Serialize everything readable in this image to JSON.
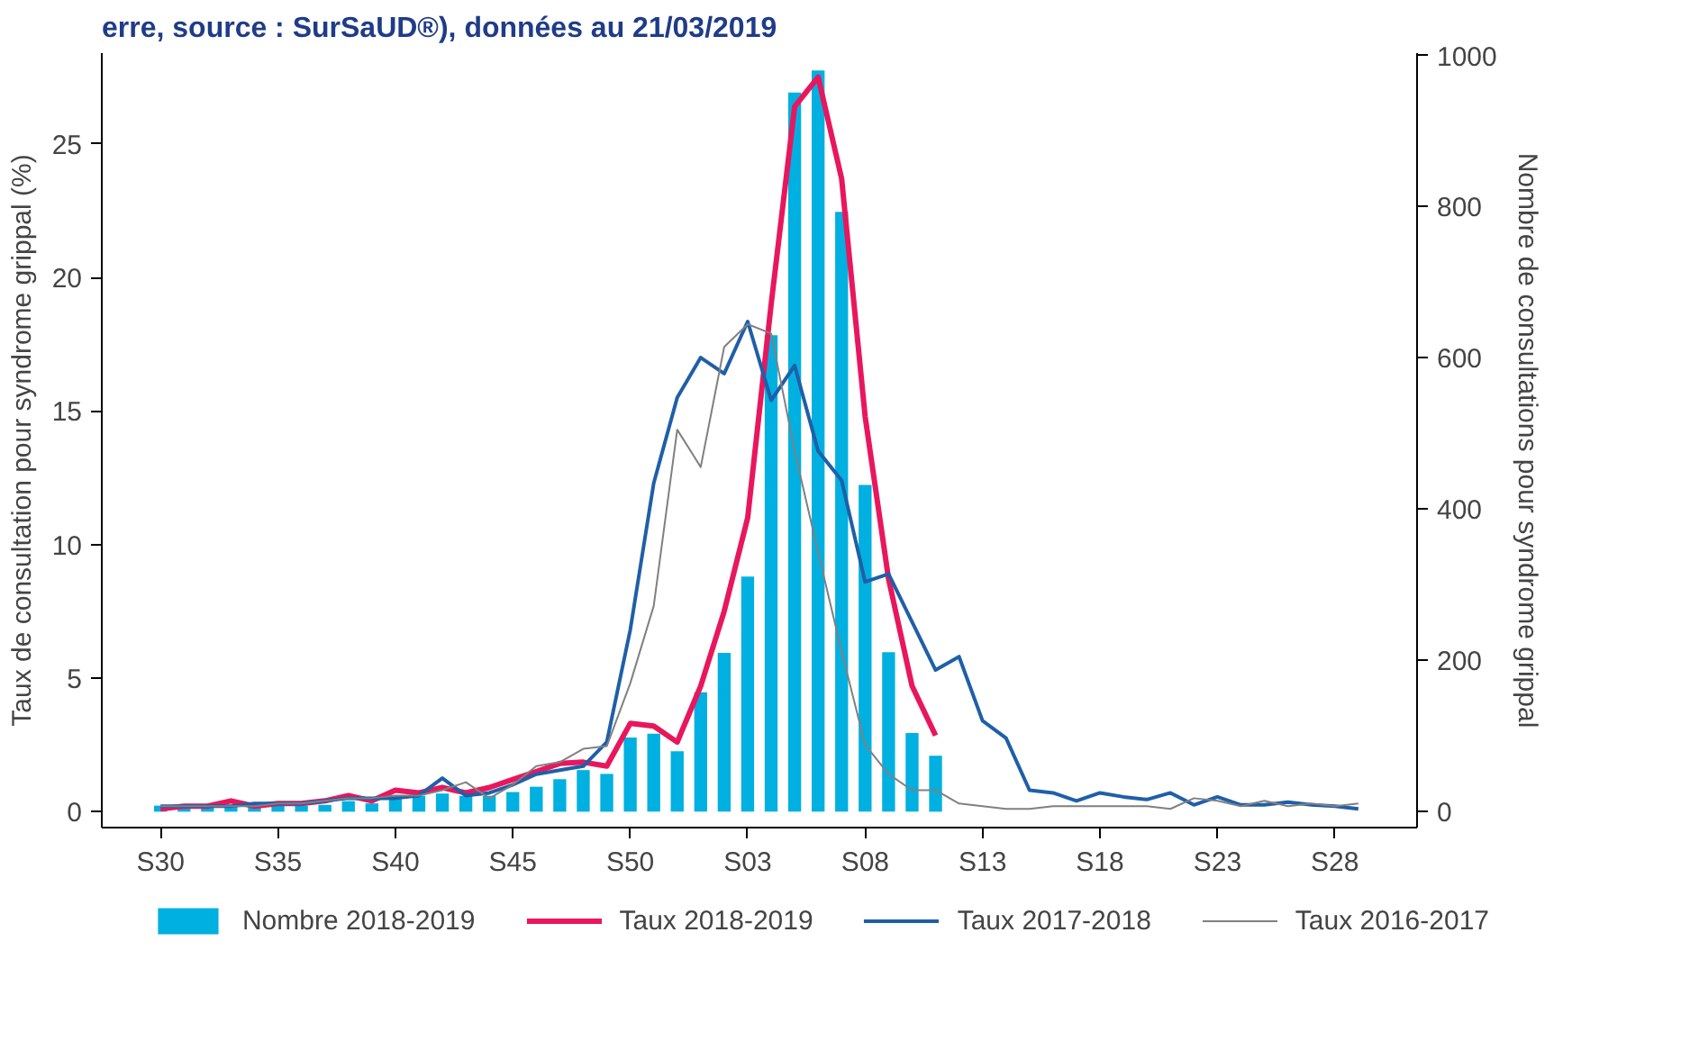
{
  "chart_data": {
    "type": "line",
    "title": "erre, source : SurSaUD®), données au 21/03/2019",
    "ylabel": "Taux de consultation pour syndrome grippal (%)",
    "y2label": "Nombre de consultations pour syndrome grippal",
    "categories": [
      "S30",
      null,
      null,
      null,
      null,
      "S35",
      null,
      null,
      null,
      null,
      "S40",
      null,
      null,
      null,
      null,
      "S45",
      null,
      null,
      null,
      null,
      "S50",
      null,
      null,
      null,
      null,
      "S03",
      null,
      null,
      null,
      null,
      "S08",
      null,
      null,
      null,
      null,
      "S13",
      null,
      null,
      null,
      null,
      "S18",
      null,
      null,
      null,
      null,
      "S23",
      null,
      null,
      null,
      null,
      "S28",
      null
    ],
    "ylim": [
      -0.6,
      28.4
    ],
    "yticks": [
      0,
      5,
      10,
      15,
      20,
      25
    ],
    "y2lim": [
      -21,
      1003
    ],
    "y2ticks": [
      0,
      200,
      400,
      600,
      800,
      1000
    ],
    "legend": "bottom",
    "series": [
      {
        "name": "Nombre 2018-2019",
        "type": "bar",
        "axis": "y2",
        "color": "#00b0e0",
        "values": [
          8,
          7,
          7,
          7,
          8,
          8,
          8,
          9,
          14,
          11,
          22,
          21,
          24,
          21,
          21,
          26,
          33,
          43,
          55,
          50,
          98,
          103,
          80,
          158,
          210,
          311,
          630,
          951,
          980,
          793,
          432,
          211,
          104,
          74,
          null,
          null,
          null,
          null,
          null,
          null,
          null,
          null,
          null,
          null,
          null,
          null,
          null,
          null,
          null,
          null,
          null,
          null
        ]
      },
      {
        "name": "Taux 2018-2019",
        "color": "#e8175d",
        "values": [
          0.1,
          0.2,
          0.2,
          0.4,
          0.2,
          0.3,
          0.3,
          0.4,
          0.6,
          0.4,
          0.8,
          0.7,
          0.9,
          0.7,
          0.9,
          1.2,
          1.5,
          1.8,
          1.85,
          1.7,
          3.3,
          3.2,
          2.6,
          4.7,
          7.5,
          11,
          19,
          26.4,
          27.5,
          23.7,
          14.8,
          8.7,
          4.7,
          2.85,
          null,
          null,
          null,
          null,
          null,
          null,
          null,
          null,
          null,
          null,
          null,
          null,
          null,
          null,
          null,
          null,
          null,
          null
        ]
      },
      {
        "name": "Taux 2017-2018",
        "color": "#1f5fa8",
        "values": [
          0.2,
          0.2,
          0.2,
          0.2,
          0.3,
          0.3,
          0.3,
          0.4,
          0.5,
          0.5,
          0.5,
          0.6,
          1.25,
          0.6,
          0.7,
          1.0,
          1.4,
          1.55,
          1.7,
          2.6,
          6.8,
          12.3,
          15.5,
          17.0,
          16.4,
          18.35,
          15.4,
          16.7,
          13.5,
          12.4,
          8.6,
          8.9,
          7.1,
          5.3,
          5.8,
          3.4,
          2.75,
          0.8,
          0.7,
          0.4,
          0.7,
          0.55,
          0.45,
          0.7,
          0.25,
          0.55,
          0.25,
          0.25,
          0.35,
          0.25,
          0.2,
          0.1
        ]
      },
      {
        "name": "Taux 2016-2017",
        "color": "#808080",
        "values": [
          0.2,
          0.2,
          0.2,
          0.2,
          0.2,
          0.3,
          0.3,
          0.4,
          0.5,
          0.5,
          0.6,
          0.6,
          0.8,
          1.1,
          0.5,
          1.0,
          1.7,
          1.85,
          2.35,
          2.45,
          4.8,
          7.7,
          14.3,
          12.9,
          17.4,
          18.25,
          17.9,
          13.5,
          9.7,
          6.0,
          2.5,
          1.4,
          0.8,
          0.8,
          0.3,
          0.2,
          0.1,
          0.1,
          0.2,
          0.2,
          0.2,
          0.2,
          0.2,
          0.1,
          0.5,
          0.4,
          0.2,
          0.4,
          0.2,
          0.3,
          0.2,
          0.3
        ]
      }
    ]
  }
}
